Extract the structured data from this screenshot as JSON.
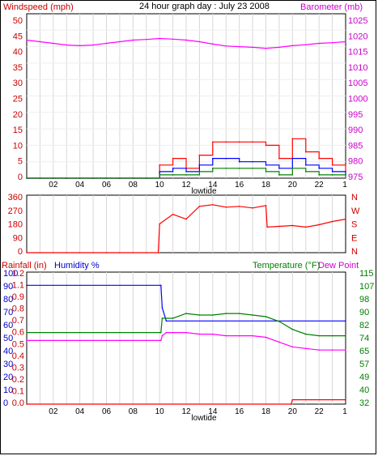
{
  "top_panel": {
    "title": "24 hour graph day : July 23 2008",
    "left_label": "Windspeed (mph)",
    "right_label": "Barometer (mb)",
    "left_ticks": [
      "50",
      "45",
      "40",
      "35",
      "30",
      "25",
      "20",
      "15",
      "10",
      "5",
      "0"
    ],
    "right_ticks": [
      "1025",
      "1020",
      "1015",
      "1010",
      "1005",
      "1000",
      "995",
      "990",
      "985",
      "980",
      "975"
    ],
    "x_ticks": [
      "02",
      "04",
      "06",
      "08",
      "10",
      "12",
      "14",
      "16",
      "18",
      "20",
      "22"
    ],
    "x_end_label": "1",
    "x_label": "lowtide"
  },
  "middle_panel": {
    "left_ticks": [
      "360",
      "270",
      "180",
      "90",
      "0"
    ],
    "right_ticks": [
      "N",
      "W",
      "S",
      "E",
      "N"
    ]
  },
  "bottom_panel": {
    "left_label_rain": "Rainfall (in)",
    "left_label_humidity": "Humidity %",
    "right_label_temp": "Temperature (°F)",
    "right_label_dew": "Dew Point",
    "humidity_ticks": [
      "100",
      "90",
      "80",
      "70",
      "60",
      "50",
      "40",
      "30",
      "20",
      "10",
      "0"
    ],
    "rain_ticks": [
      "1.2",
      "1.1",
      "0.9",
      "0.8",
      "0.7",
      "0.6",
      "0.5",
      "0.4",
      "0.3",
      "0.2",
      "0.1",
      "0.0"
    ],
    "temp_ticks": [
      "115",
      "107",
      "98",
      "90",
      "82",
      "74",
      "65",
      "57",
      "49",
      "40",
      "32"
    ],
    "x_ticks": [
      "02",
      "04",
      "06",
      "08",
      "10",
      "12",
      "14",
      "16",
      "18",
      "20",
      "22"
    ],
    "x_end_label": "1",
    "x_label": "lowtide"
  },
  "colors": {
    "wind": "#ff0000",
    "gust": "#0000ff",
    "wind_green": "#008000",
    "barometer": "#ff00ff",
    "humidity": "#0000ff",
    "rain": "#ff0000",
    "temperature": "#008000",
    "dewpoint": "#ff00ff",
    "grid": "#d8d8d8"
  },
  "chart_data": [
    {
      "type": "line",
      "title": "24 hour graph day : July 23 2008",
      "xlabel": "lowtide",
      "ylabel": "Windspeed (mph)",
      "y2label": "Barometer (mb)",
      "ylim": [
        0,
        50
      ],
      "y2lim": [
        975,
        1025
      ],
      "x_hours": [
        0,
        1,
        2,
        3,
        4,
        5,
        6,
        7,
        8,
        9,
        10,
        11,
        12,
        13,
        14,
        15,
        16,
        17,
        18,
        19,
        20,
        21,
        22,
        23,
        24
      ],
      "series": [
        {
          "name": "Windspeed (mph)",
          "axis": "left",
          "color": "#ff0000",
          "kind": "step",
          "values": [
            0,
            0,
            0,
            0,
            0,
            0,
            0,
            0,
            0,
            0,
            4,
            6,
            3,
            7,
            11,
            11,
            11,
            11,
            10,
            6,
            12,
            8,
            6,
            4,
            2
          ]
        },
        {
          "name": "",
          "axis": "left",
          "color": "#0000ff",
          "kind": "step",
          "values": [
            0,
            0,
            0,
            0,
            0,
            0,
            0,
            0,
            0,
            0,
            2,
            3,
            2,
            4,
            6,
            6,
            5,
            5,
            4,
            3,
            6,
            4,
            3,
            2,
            1
          ]
        },
        {
          "name": "",
          "axis": "left",
          "color": "#008000",
          "kind": "step",
          "values": [
            0,
            0,
            0,
            0,
            0,
            0,
            0,
            0,
            0,
            0,
            1,
            1,
            1,
            2,
            3,
            3,
            3,
            3,
            2,
            1,
            3,
            2,
            1,
            1,
            0
          ]
        },
        {
          "name": "Barometer (mb)",
          "axis": "right",
          "color": "#ff00ff",
          "kind": "line",
          "values": [
            1017,
            1016.5,
            1016,
            1015.5,
            1015.3,
            1015.5,
            1016,
            1016.5,
            1017,
            1017.2,
            1017.5,
            1017.3,
            1017,
            1016.5,
            1015.8,
            1015.2,
            1015,
            1014.8,
            1014.5,
            1014.8,
            1015.3,
            1015.6,
            1016,
            1016.2,
            1016.5
          ]
        }
      ]
    },
    {
      "type": "line",
      "ylim": [
        0,
        360
      ],
      "x_hours": [
        0,
        1,
        2,
        3,
        4,
        5,
        6,
        7,
        8,
        9,
        9.9,
        10,
        11,
        12,
        13,
        14,
        15,
        16,
        17,
        18,
        18.1,
        19,
        20,
        21,
        22,
        23,
        24
      ],
      "series": [
        {
          "name": "",
          "color": "#ff0000",
          "values": [
            0,
            0,
            0,
            0,
            0,
            0,
            0,
            0,
            0,
            0,
            0,
            180,
            240,
            210,
            290,
            300,
            285,
            290,
            280,
            295,
            160,
            165,
            170,
            160,
            175,
            195,
            210
          ]
        }
      ]
    },
    {
      "type": "line",
      "ylabel": "Humidity %",
      "y2label": "Temperature (°F)",
      "ylim": [
        0,
        100
      ],
      "y2lim": [
        32,
        115
      ],
      "series": [
        {
          "name": "Humidity %",
          "axis": "left",
          "color": "#0000ff",
          "x": [
            0,
            10.1,
            10.2,
            10.5,
            24
          ],
          "values": [
            90,
            90,
            73,
            63,
            63
          ]
        },
        {
          "name": "Rainfall (in)",
          "axis": "rain",
          "color": "#ff0000",
          "x": [
            0,
            19.9,
            20,
            24
          ],
          "values": [
            0,
            0,
            0.04,
            0.04
          ]
        },
        {
          "name": "Temperature (°F)",
          "axis": "right",
          "color": "#008000",
          "x": [
            0,
            10.1,
            10.2,
            11,
            12,
            13,
            14,
            15,
            16,
            17,
            18,
            19,
            20,
            21,
            22,
            23,
            24
          ],
          "values": [
            77,
            77,
            86,
            86,
            89,
            88,
            88,
            89,
            89,
            88,
            87,
            84,
            79,
            76,
            75,
            75,
            75
          ]
        },
        {
          "name": "Dew Point",
          "axis": "right",
          "color": "#ff00ff",
          "x": [
            0,
            10.1,
            10.2,
            10.5,
            11,
            12,
            13,
            14,
            15,
            16,
            17,
            18,
            19,
            20,
            21,
            22,
            23,
            24
          ],
          "values": [
            72,
            72,
            75,
            77,
            77,
            77,
            76,
            76,
            75,
            75,
            75,
            74,
            71,
            68,
            67,
            66,
            66,
            66
          ]
        }
      ]
    }
  ]
}
